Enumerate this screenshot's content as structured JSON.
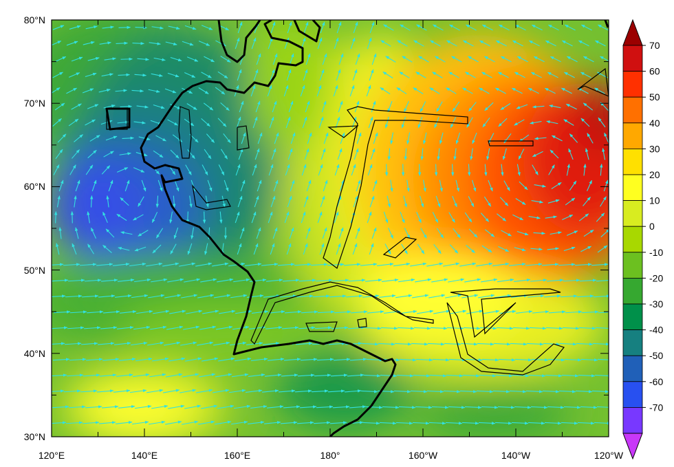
{
  "map": {
    "lon_labels": [
      "120°E",
      "140°E",
      "160°E",
      "180°",
      "160°W",
      "140°W",
      "120°W"
    ],
    "lat_labels": [
      "30°N",
      "40°N",
      "50°N",
      "60°N",
      "70°N",
      "80°N"
    ],
    "contour_field": "shaded anomaly field with wind vectors",
    "vector_color": "#33e0e0",
    "coastline_color": "#000000"
  },
  "colorbar": {
    "labels": [
      "70",
      "60",
      "50",
      "40",
      "30",
      "20",
      "10",
      "0",
      "-10",
      "-20",
      "-30",
      "-40",
      "-50",
      "-60",
      "-70"
    ],
    "colors": [
      "#9b0000",
      "#d01010",
      "#ff3000",
      "#ff7000",
      "#ffa800",
      "#ffe000",
      "#ffff20",
      "#d8ec20",
      "#a8d800",
      "#6cc020",
      "#36a830",
      "#00904a",
      "#168080",
      "#2060b8",
      "#2850f0",
      "#7838ff",
      "#c838f8"
    ]
  }
}
